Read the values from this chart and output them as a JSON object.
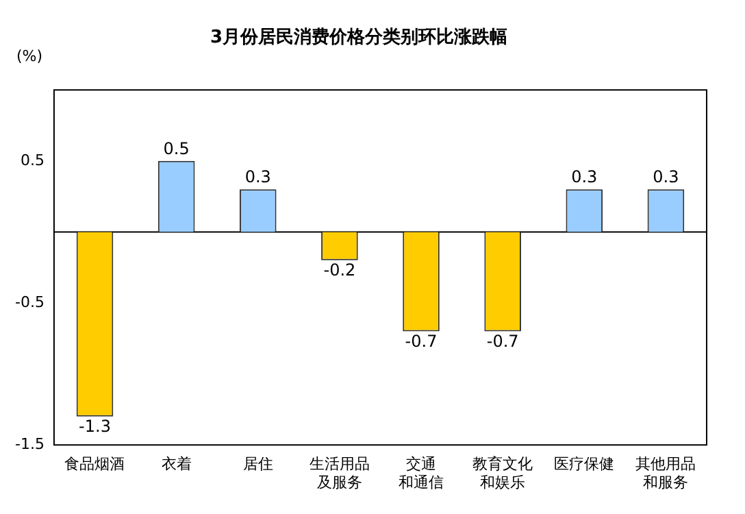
{
  "chart_data": {
    "type": "bar",
    "title": "3月份居民消费价格分类别环比涨跌幅",
    "ylabel": "(%)",
    "categories": [
      "食品烟酒",
      "衣着",
      "居住",
      "生活用品及服务",
      "交通和通信",
      "教育文化和娱乐",
      "医疗保健",
      "其他用品和服务"
    ],
    "values": [
      -1.3,
      0.5,
      0.3,
      -0.2,
      -0.7,
      -0.7,
      0.3,
      0.3
    ],
    "colors": [
      "#ffcc00",
      "#99ccff",
      "#99ccff",
      "#ffcc00",
      "#ffcc00",
      "#ffcc00",
      "#99ccff",
      "#99ccff"
    ],
    "ylim": [
      -1.5,
      1.0
    ],
    "yticks": [
      0.5,
      -0.5,
      -1.5
    ],
    "data_labels": true,
    "grid": false,
    "legend": false
  }
}
